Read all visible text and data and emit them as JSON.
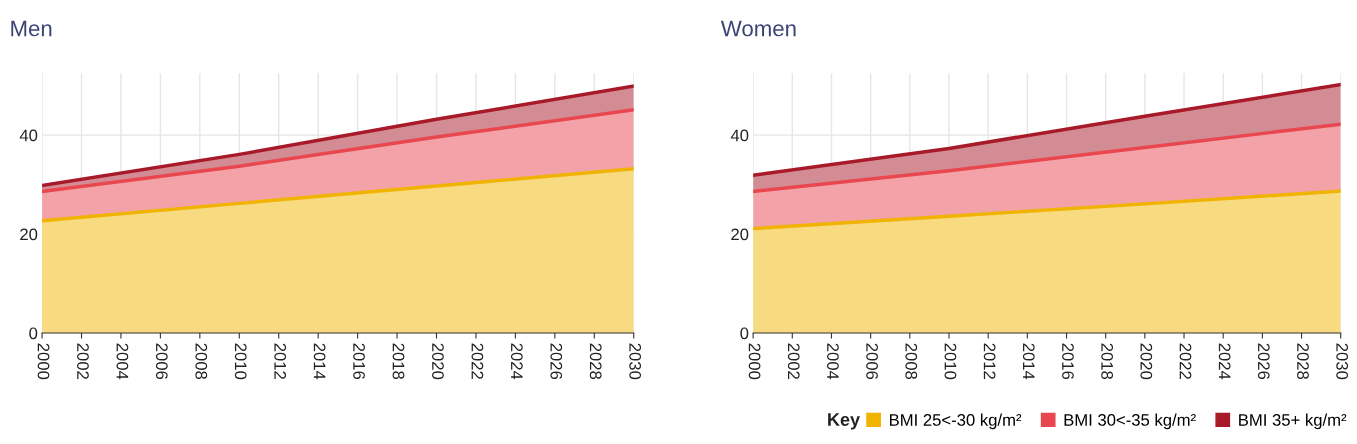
{
  "chart_data": [
    {
      "type": "area",
      "title": "Men",
      "stacked": true,
      "x": [
        2000,
        2010,
        2020,
        2030
      ],
      "xlim": [
        2000,
        2030
      ],
      "xticks": [
        2000,
        2002,
        2004,
        2006,
        2008,
        2010,
        2012,
        2014,
        2016,
        2018,
        2020,
        2022,
        2024,
        2026,
        2028,
        2030
      ],
      "ylim": [
        0,
        52.5
      ],
      "yticks": [
        0,
        20,
        40
      ],
      "grid": true,
      "legend": false,
      "series": [
        {
          "color": "#f0b400",
          "values": [
            22.7,
            26.2,
            29.7,
            33.2
          ]
        },
        {
          "color": "#e8474f",
          "values": [
            5.9,
            7.5,
            9.9,
            11.9
          ]
        },
        {
          "color": "#a81a2a",
          "values": [
            1.2,
            2.4,
            3.6,
            4.8
          ]
        }
      ]
    },
    {
      "type": "area",
      "title": "Women",
      "stacked": true,
      "x": [
        2000,
        2010,
        2020,
        2030
      ],
      "xlim": [
        2000,
        2030
      ],
      "xticks": [
        2000,
        2002,
        2004,
        2006,
        2008,
        2010,
        2012,
        2014,
        2016,
        2018,
        2020,
        2022,
        2024,
        2026,
        2028,
        2030
      ],
      "ylim": [
        0,
        52.5
      ],
      "yticks": [
        0,
        20,
        40
      ],
      "grid": true,
      "legend": "bottom right",
      "legend_title": "Key",
      "series": [
        {
          "name": "BMI 25<-30 kg/m²",
          "color": "#f0b400",
          "values": [
            21.1,
            23.6,
            26.1,
            28.7
          ]
        },
        {
          "name": "BMI 30<-35 kg/m²",
          "color": "#e8474f",
          "values": [
            7.5,
            9.2,
            11.4,
            13.5
          ]
        },
        {
          "name": "BMI 35+ kg/m²",
          "color": "#a81a2a",
          "values": [
            3.3,
            4.5,
            6.3,
            8.0
          ]
        }
      ]
    }
  ]
}
